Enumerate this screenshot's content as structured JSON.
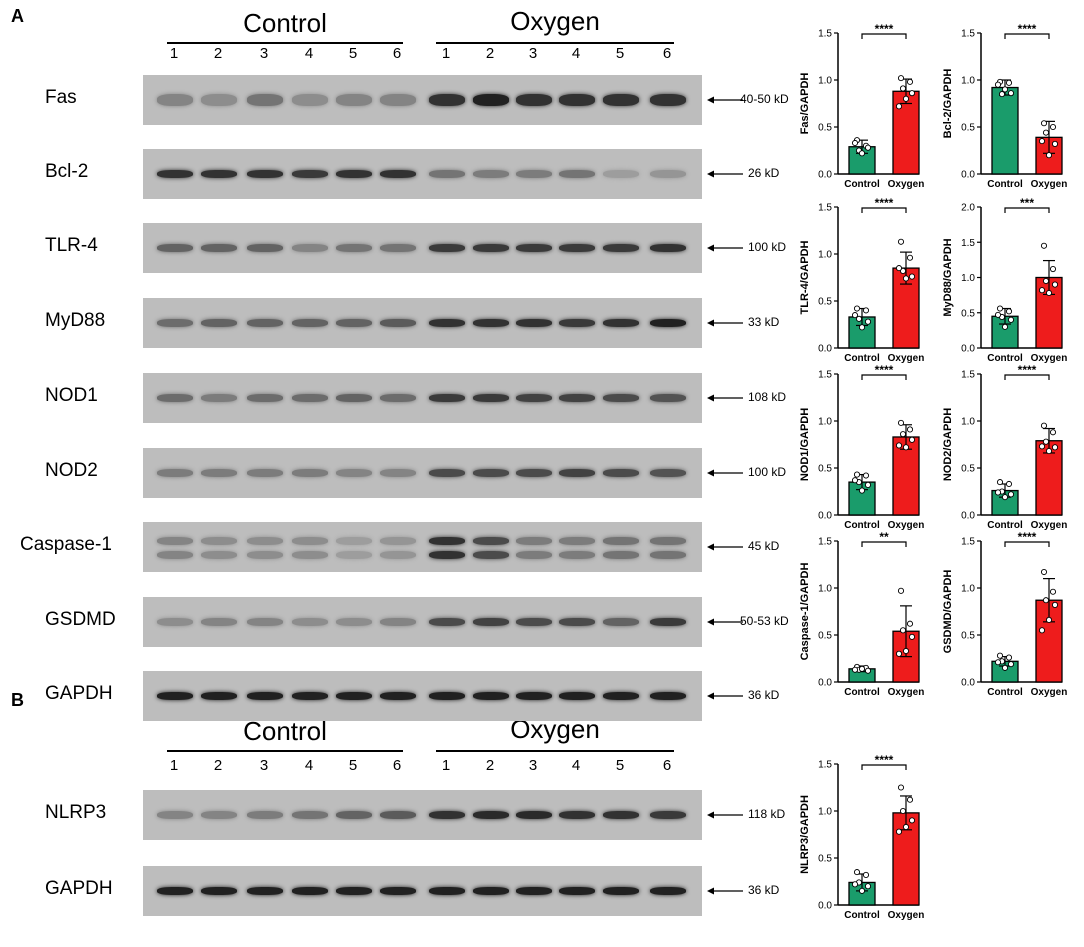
{
  "panels": [
    "A",
    "B"
  ],
  "groups": {
    "control": "Control",
    "oxygen": "Oxygen"
  },
  "lanes": [
    "1",
    "2",
    "3",
    "4",
    "5",
    "6"
  ],
  "blots": [
    {
      "protein": "Fas",
      "size": "40-50 kD"
    },
    {
      "protein": "Bcl-2",
      "size": "26 kD"
    },
    {
      "protein": "TLR-4",
      "size": "100 kD"
    },
    {
      "protein": "MyD88",
      "size": "33 kD"
    },
    {
      "protein": "NOD1",
      "size": "108 kD"
    },
    {
      "protein": "NOD2",
      "size": "100 kD"
    },
    {
      "protein": "Caspase-1",
      "size": "45 kD"
    },
    {
      "protein": "GSDMD",
      "size": "50-53 kD"
    },
    {
      "protein": "GAPDH",
      "size": "36 kD"
    },
    {
      "protein": "NLRP3",
      "size": "118 kD"
    },
    {
      "protein": "GAPDH",
      "size": "36 kD"
    }
  ],
  "colors": {
    "control": "#1a9c6b",
    "oxygen": "#ee1c1c"
  },
  "chart_data": [
    {
      "type": "bar",
      "ylabel": "Fas/GAPDH",
      "categories": [
        "Control",
        "Oxygen"
      ],
      "values": [
        0.29,
        0.88
      ],
      "errors": [
        0.07,
        0.13
      ],
      "ylim": [
        0,
        1.5
      ],
      "yticks": [
        "0.0",
        "0.5",
        "1.0",
        "1.5"
      ],
      "significance": "****",
      "points": [
        [
          0.36,
          0.3,
          0.25,
          0.28,
          0.22,
          0.33
        ],
        [
          1.02,
          0.98,
          0.91,
          0.86,
          0.8,
          0.72
        ]
      ]
    },
    {
      "type": "bar",
      "ylabel": "Bcl-2/GAPDH",
      "categories": [
        "Control",
        "Oxygen"
      ],
      "values": [
        0.92,
        0.39
      ],
      "errors": [
        0.08,
        0.17
      ],
      "ylim": [
        0,
        1.5
      ],
      "yticks": [
        "0.0",
        "0.5",
        "1.0",
        "1.5"
      ],
      "significance": "****",
      "points": [
        [
          0.98,
          0.97,
          0.85,
          0.86,
          0.9,
          0.95
        ],
        [
          0.54,
          0.5,
          0.44,
          0.32,
          0.2,
          0.35
        ]
      ]
    },
    {
      "type": "bar",
      "ylabel": "TLR-4/GAPDH",
      "categories": [
        "Control",
        "Oxygen"
      ],
      "values": [
        0.33,
        0.85
      ],
      "errors": [
        0.09,
        0.17
      ],
      "ylim": [
        0,
        1.5
      ],
      "yticks": [
        "0.0",
        "0.5",
        "1.0",
        "1.5"
      ],
      "significance": "****",
      "points": [
        [
          0.42,
          0.4,
          0.31,
          0.28,
          0.22,
          0.35
        ],
        [
          1.13,
          0.96,
          0.82,
          0.76,
          0.74,
          0.85
        ]
      ]
    },
    {
      "type": "bar",
      "ylabel": "MyD88/GAPDH",
      "categories": [
        "Control",
        "Oxygen"
      ],
      "values": [
        0.45,
        1.0
      ],
      "errors": [
        0.11,
        0.24
      ],
      "ylim": [
        0,
        2.0
      ],
      "yticks": [
        "0.0",
        "0.5",
        "1.0",
        "1.5",
        "2.0"
      ],
      "significance": "***",
      "points": [
        [
          0.56,
          0.52,
          0.44,
          0.4,
          0.3,
          0.47
        ],
        [
          1.45,
          1.12,
          0.95,
          0.9,
          0.78,
          0.82
        ]
      ]
    },
    {
      "type": "bar",
      "ylabel": "NOD1/GAPDH",
      "categories": [
        "Control",
        "Oxygen"
      ],
      "values": [
        0.35,
        0.83
      ],
      "errors": [
        0.08,
        0.13
      ],
      "ylim": [
        0,
        1.5
      ],
      "yticks": [
        "0.0",
        "0.5",
        "1.0",
        "1.5"
      ],
      "significance": "****",
      "points": [
        [
          0.43,
          0.42,
          0.35,
          0.32,
          0.26,
          0.37
        ],
        [
          0.98,
          0.91,
          0.86,
          0.8,
          0.72,
          0.74
        ]
      ]
    },
    {
      "type": "bar",
      "ylabel": "NOD2/GAPDH",
      "categories": [
        "Control",
        "Oxygen"
      ],
      "values": [
        0.26,
        0.79
      ],
      "errors": [
        0.07,
        0.13
      ],
      "ylim": [
        0,
        1.5
      ],
      "yticks": [
        "0.0",
        "0.5",
        "1.0",
        "1.5"
      ],
      "significance": "****",
      "points": [
        [
          0.35,
          0.33,
          0.25,
          0.22,
          0.19,
          0.24
        ],
        [
          0.95,
          0.88,
          0.78,
          0.72,
          0.68,
          0.73
        ]
      ]
    },
    {
      "type": "bar",
      "ylabel": "Caspase-1/GAPDH",
      "categories": [
        "Control",
        "Oxygen"
      ],
      "values": [
        0.14,
        0.54
      ],
      "errors": [
        0.03,
        0.27
      ],
      "ylim": [
        0,
        1.5
      ],
      "yticks": [
        "0.0",
        "0.5",
        "1.0",
        "1.5"
      ],
      "significance": "**",
      "points": [
        [
          0.16,
          0.15,
          0.13,
          0.12,
          0.14,
          0.13
        ],
        [
          0.97,
          0.62,
          0.55,
          0.48,
          0.33,
          0.3
        ]
      ]
    },
    {
      "type": "bar",
      "ylabel": "GSDMD/GAPDH",
      "categories": [
        "Control",
        "Oxygen"
      ],
      "values": [
        0.22,
        0.87
      ],
      "errors": [
        0.05,
        0.23
      ],
      "ylim": [
        0,
        1.5
      ],
      "yticks": [
        "0.0",
        "0.5",
        "1.0",
        "1.5"
      ],
      "significance": "****",
      "points": [
        [
          0.28,
          0.26,
          0.22,
          0.19,
          0.15,
          0.21
        ],
        [
          1.17,
          0.96,
          0.87,
          0.82,
          0.66,
          0.55
        ]
      ]
    },
    {
      "type": "bar",
      "ylabel": "NLRP3/GAPDH",
      "categories": [
        "Control",
        "Oxygen"
      ],
      "values": [
        0.24,
        0.98
      ],
      "errors": [
        0.09,
        0.18
      ],
      "ylim": [
        0,
        1.5
      ],
      "yticks": [
        "0.0",
        "0.5",
        "1.0",
        "1.5"
      ],
      "significance": "****",
      "points": [
        [
          0.35,
          0.32,
          0.24,
          0.2,
          0.15,
          0.22
        ],
        [
          1.25,
          1.12,
          1.0,
          0.9,
          0.83,
          0.78
        ]
      ]
    }
  ]
}
